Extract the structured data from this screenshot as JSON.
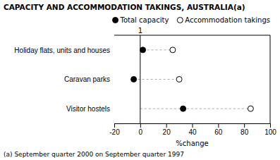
{
  "chart_data": {
    "type": "dot",
    "orientation": "horizontal",
    "title": "CAPACITY AND ACCOMMODATION TAKINGS, AUSTRALIA(a)",
    "footnote": "(a) September quarter 2000 on September quarter 1997",
    "xlabel": "%change",
    "categories": [
      "Holiday flats, units and houses",
      "Caravan parks",
      "Visitor hostels"
    ],
    "series": [
      {
        "name": "Total capacity",
        "color": "#000000",
        "marker": "circle",
        "values": [
          2,
          -5,
          33
        ]
      },
      {
        "name": "Accommodation takings",
        "color": "#ffffff",
        "marker": "circle",
        "line_style": "dashed",
        "values": [
          25,
          30,
          85
        ],
        "line_start": [
          2,
          -5,
          0
        ]
      }
    ],
    "xlim": [
      -20,
      100
    ],
    "xticks": [
      -20,
      0,
      20,
      40,
      60,
      80,
      100
    ],
    "vline": 0,
    "annotations": [
      {
        "text": "1",
        "x": 0
      }
    ],
    "legend": "upper right",
    "grid": false
  }
}
